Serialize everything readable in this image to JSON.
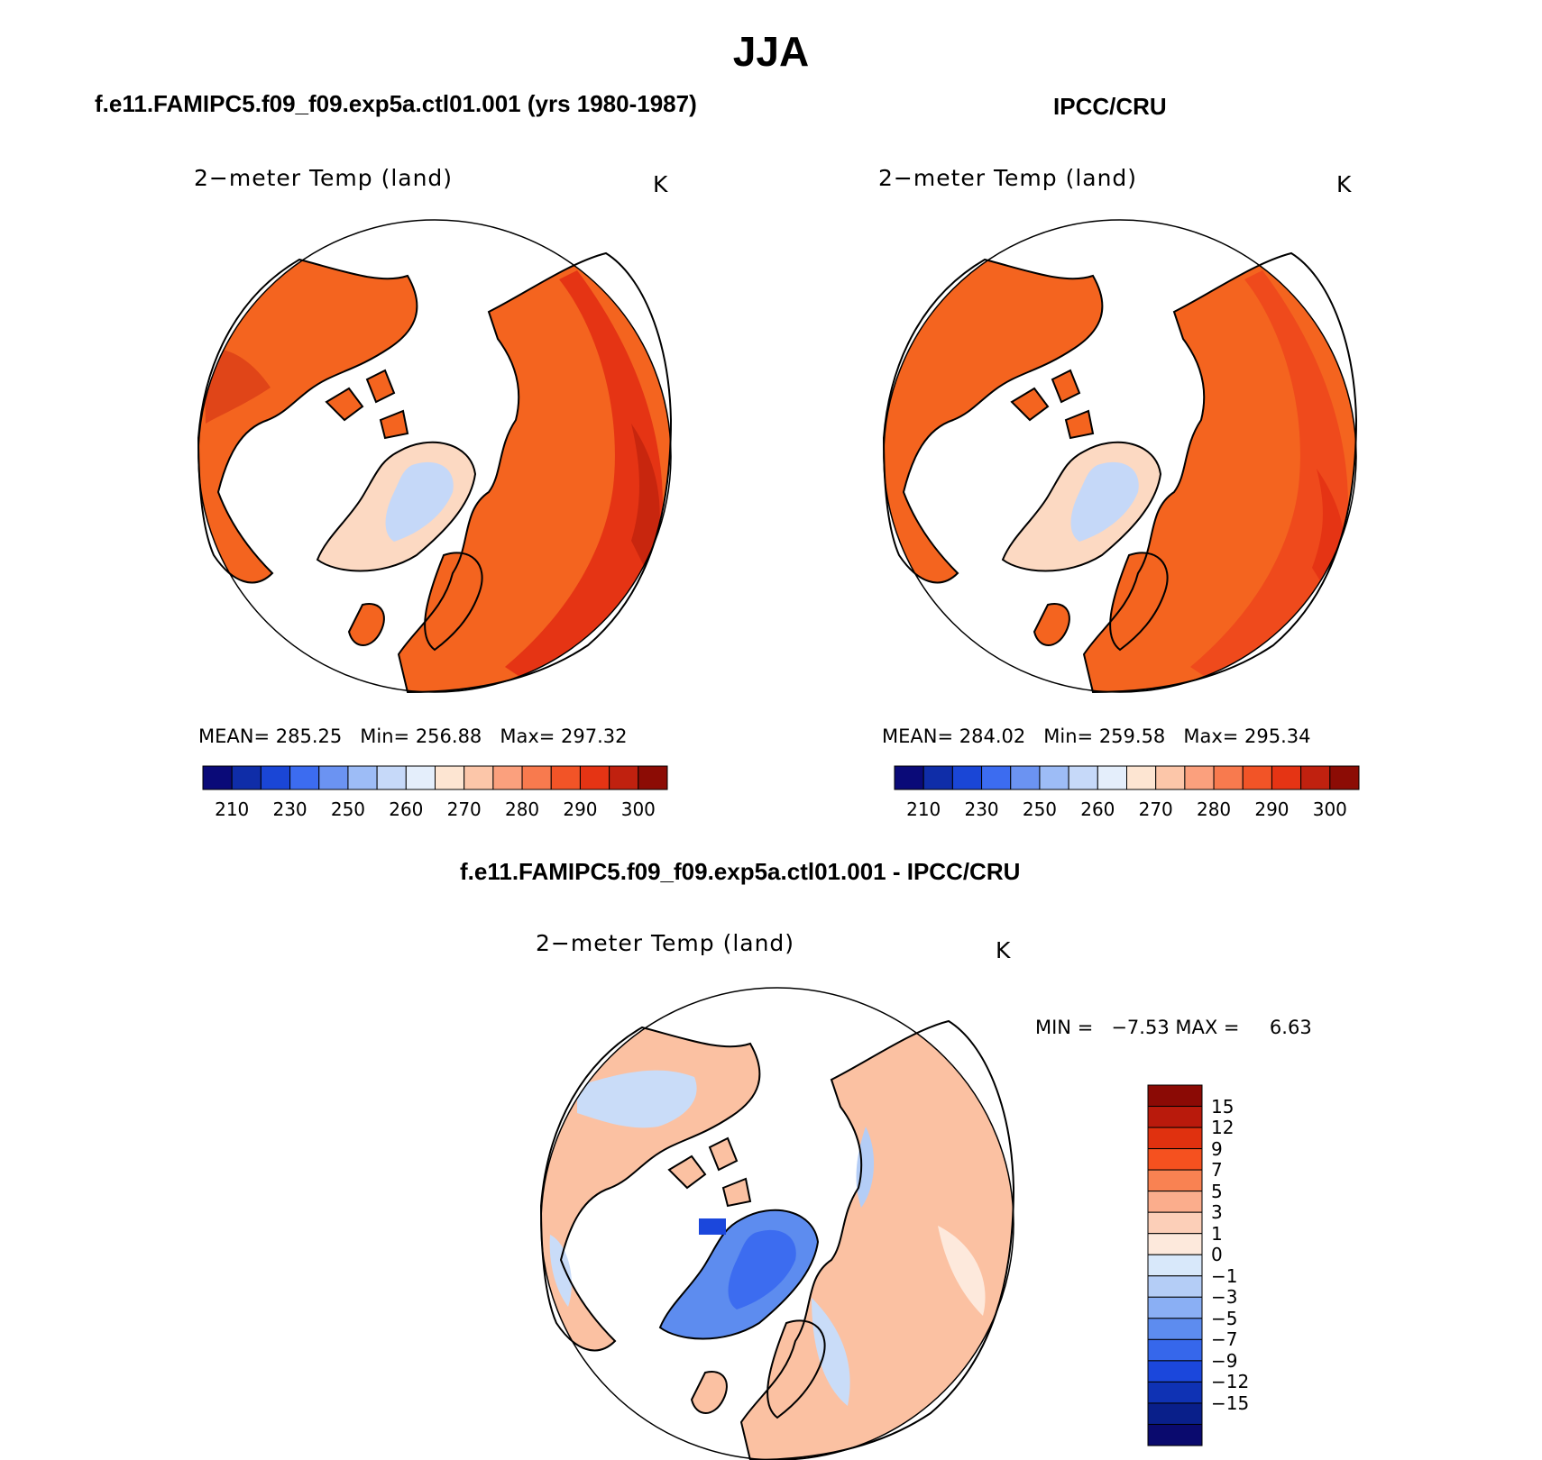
{
  "figure": {
    "title": "JJA",
    "units_label": "K"
  },
  "panels": [
    {
      "id": "model",
      "header": "f.e11.FAMIPC5.f09_f09.exp5a.ctl01.001 (yrs 1980-1987)",
      "variable": "2−meter Temp (land)",
      "units": "K",
      "stats": {
        "mean_label": "MEAN=",
        "mean": "285.25",
        "min_label": "Min=",
        "min": "256.88",
        "max_label": "Max=",
        "max": "297.32"
      }
    },
    {
      "id": "obs",
      "header": "IPCC/CRU",
      "variable": "2−meter Temp (land)",
      "units": "K",
      "stats": {
        "mean_label": "MEAN=",
        "mean": "284.02",
        "min_label": "Min=",
        "min": "259.58",
        "max_label": "Max=",
        "max": "295.34"
      }
    },
    {
      "id": "diff",
      "header": "f.e11.FAMIPC5.f09_f09.exp5a.ctl01.001 - IPCC/CRU",
      "variable": "2−meter Temp (land)",
      "units": "K",
      "stats": {
        "min_label": "MIN =",
        "min": "−7.53",
        "max_label": "MAX =",
        "max": "6.63"
      }
    }
  ],
  "colorbars": {
    "absolute": {
      "colors": [
        "#0a0a78",
        "#0f2da8",
        "#1a46d6",
        "#3c6cf0",
        "#6b93f2",
        "#9dbcf6",
        "#c6d9f9",
        "#e4eefb",
        "#fde5d2",
        "#fcc6a9",
        "#fba07d",
        "#f87a4e",
        "#f25427",
        "#e53414",
        "#c0210f",
        "#8c0c05"
      ],
      "tick_labels": [
        "210",
        "230",
        "250",
        "260",
        "270",
        "280",
        "290",
        "300"
      ]
    },
    "difference": {
      "colors": [
        "#8b0a05",
        "#b91a0c",
        "#e0310f",
        "#f5511f",
        "#f98252",
        "#fbad8c",
        "#fccfb8",
        "#fde9dc",
        "#d8e8fa",
        "#b4cdf6",
        "#8aaff4",
        "#5d8cef",
        "#3667eb",
        "#1b47dc",
        "#0f32b4",
        "#091f8a",
        "#0a0a6e"
      ],
      "tick_labels": [
        "15",
        "12",
        "9",
        "7",
        "5",
        "3",
        "1",
        "0",
        "−1",
        "−3",
        "−5",
        "−7",
        "−9",
        "−12",
        "−15"
      ]
    }
  },
  "map_colors": {
    "model_fill": "#f4641f",
    "model_warm": "#e53414",
    "model_hot": "#c8260e",
    "greenland": "#fcd9c2",
    "ice_core": "#c5d8f8",
    "diff_warm": "#fbc1a2",
    "diff_cool": "#c9dcf8",
    "diff_cold": "#4c7ef0"
  }
}
